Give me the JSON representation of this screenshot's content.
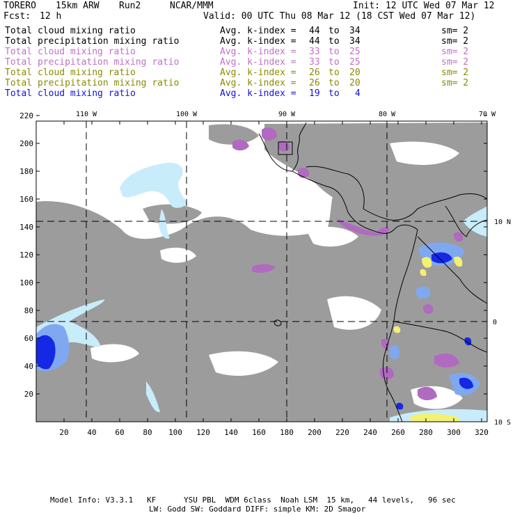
{
  "header": {
    "model": "TORERO",
    "resolution": "15km ARW",
    "run": "Run2",
    "org": "NCAR/MMM",
    "init": "Init: 12 UTC Wed 07 Mar 12",
    "fcst_label": "Fcst:",
    "fcst_value": "12 h",
    "valid": "Valid: 00 UTC Thu 08 Mar 12 (18 CST Wed 07 Mar 12)"
  },
  "legend": [
    {
      "field": "Total cloud mixing ratio",
      "label": "Avg. k-index =",
      "from": "44",
      "to_word": "to",
      "to": "34",
      "sm": "sm= 2",
      "color": "#000000"
    },
    {
      "field": "Total precipitation mixing ratio",
      "label": "Avg. k-index =",
      "from": "44",
      "to_word": "to",
      "to": "34",
      "sm": "sm= 2",
      "color": "#000000"
    },
    {
      "field": "Total cloud mixing ratio",
      "label": "Avg. k-index =",
      "from": "33",
      "to_word": "to",
      "to": "25",
      "sm": "sm= 2",
      "color": "#c070c8"
    },
    {
      "field": "Total precipitation mixing ratio",
      "label": "Avg. k-index =",
      "from": "33",
      "to_word": "to",
      "to": "25",
      "sm": "sm= 2",
      "color": "#c070c8"
    },
    {
      "field": "Total cloud mixing ratio",
      "label": "Avg. k-index =",
      "from": "26",
      "to_word": "to",
      "to": "20",
      "sm": "sm= 2",
      "color": "#8a8a00"
    },
    {
      "field": "Total precipitation mixing ratio",
      "label": "Avg. k-index =",
      "from": "26",
      "to_word": "to",
      "to": "20",
      "sm": "sm= 2",
      "color": "#8a8a00"
    },
    {
      "field": "Total cloud mixing ratio",
      "label": "Avg. k-index =",
      "from": "19",
      "to_word": "to",
      "to": "4",
      "sm": "",
      "color": "#1010e0"
    }
  ],
  "map": {
    "x_ticks": [
      20,
      40,
      60,
      80,
      100,
      120,
      140,
      160,
      180,
      200,
      220,
      240,
      260,
      280,
      300,
      320
    ],
    "y_ticks": [
      20,
      40,
      60,
      80,
      100,
      120,
      140,
      160,
      180,
      200,
      220
    ],
    "lon_labels": [
      "110 W",
      "100 W",
      "90 W",
      "80 W",
      "70 W"
    ],
    "lat_labels": [
      "10 N",
      "0",
      "10 S"
    ],
    "colors": {
      "cloud_gray": "#9c9c9c",
      "cloud_light_blue": "#c8ecfa",
      "mid_blue": "#7fa8f0",
      "deep_blue": "#1428e6",
      "purple": "#b06ac0",
      "yellow": "#f4f070",
      "coast": "#000000",
      "grid": "#000000"
    }
  },
  "footer": {
    "line1": "Model Info: V3.3.1   KF      YSU PBL  WDM 6class  Noah LSM  15 km,   44 levels,   96 sec",
    "line2": "LW: Godd SW: Goddard DIFF: simple KM: 2D Smagor"
  }
}
